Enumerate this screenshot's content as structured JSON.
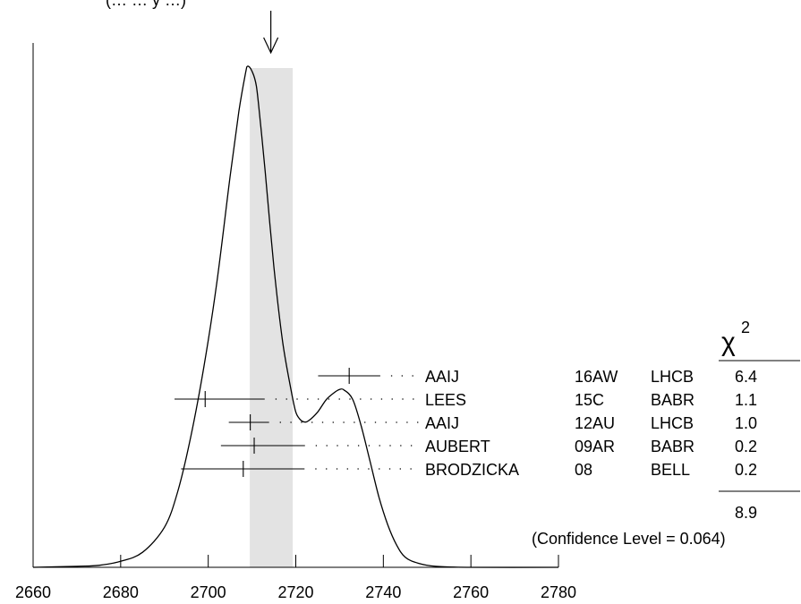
{
  "chart_data": {
    "type": "ideogram",
    "title_partial": "(…  … y …)",
    "xlim": [
      2660,
      2780
    ],
    "x_ticks": [
      2660,
      2680,
      2700,
      2720,
      2740,
      2760,
      2780
    ],
    "weighted_average": {
      "value": 2714.3,
      "band": [
        2709.5,
        2719.3
      ]
    },
    "ideogram_curve": [
      [
        2660,
        0.0
      ],
      [
        2670,
        0.002
      ],
      [
        2675,
        0.004
      ],
      [
        2680,
        0.012
      ],
      [
        2685,
        0.03
      ],
      [
        2690,
        0.08
      ],
      [
        2693,
        0.15
      ],
      [
        2696,
        0.26
      ],
      [
        2699,
        0.4
      ],
      [
        2702,
        0.57
      ],
      [
        2705,
        0.78
      ],
      [
        2707,
        0.91
      ],
      [
        2708.5,
        0.985
      ],
      [
        2709,
        1.0
      ],
      [
        2710,
        0.99
      ],
      [
        2711,
        0.96
      ],
      [
        2712,
        0.88
      ],
      [
        2713,
        0.79
      ],
      [
        2715,
        0.6
      ],
      [
        2717,
        0.45
      ],
      [
        2719,
        0.35
      ],
      [
        2720,
        0.31
      ],
      [
        2721,
        0.295
      ],
      [
        2722,
        0.29
      ],
      [
        2723,
        0.293
      ],
      [
        2725,
        0.31
      ],
      [
        2727,
        0.335
      ],
      [
        2729,
        0.35
      ],
      [
        2730,
        0.355
      ],
      [
        2731,
        0.354
      ],
      [
        2733,
        0.335
      ],
      [
        2735,
        0.28
      ],
      [
        2737,
        0.21
      ],
      [
        2739,
        0.14
      ],
      [
        2741,
        0.085
      ],
      [
        2743,
        0.045
      ],
      [
        2745,
        0.02
      ],
      [
        2748,
        0.008
      ],
      [
        2752,
        0.002
      ],
      [
        2760,
        0.0
      ],
      [
        2780,
        0.0
      ]
    ],
    "measurements": [
      {
        "author": "AAIJ",
        "ref": "16AW",
        "experiment": "LHCB",
        "value": 2732.2,
        "low": 2725.1,
        "high": 2739.3,
        "chi2": "6.4"
      },
      {
        "author": "LEES",
        "ref": "15C",
        "experiment": "BABR",
        "value": 2699.3,
        "low": 2692.3,
        "high": 2712.9,
        "chi2": "1.1"
      },
      {
        "author": "AAIJ",
        "ref": "12AU",
        "experiment": "LHCB",
        "value": 2709.6,
        "low": 2704.7,
        "high": 2713.9,
        "chi2": "1.0"
      },
      {
        "author": "AUBERT",
        "ref": "09AR",
        "experiment": "BABR",
        "value": 2710.5,
        "low": 2702.9,
        "high": 2722.1,
        "chi2": "0.2"
      },
      {
        "author": "BRODZICKA",
        "ref": "08",
        "experiment": "BELL",
        "value": 2708.0,
        "low": 2693.8,
        "high": 2722.0,
        "chi2": "0.2"
      }
    ],
    "chi2_header": "χ",
    "chi2_superscript": "2",
    "chi2_total": "8.9",
    "confidence_level": "(Confidence Level = 0.064)",
    "colors": {
      "band": "#e3e3e3",
      "line": "#000000"
    }
  }
}
